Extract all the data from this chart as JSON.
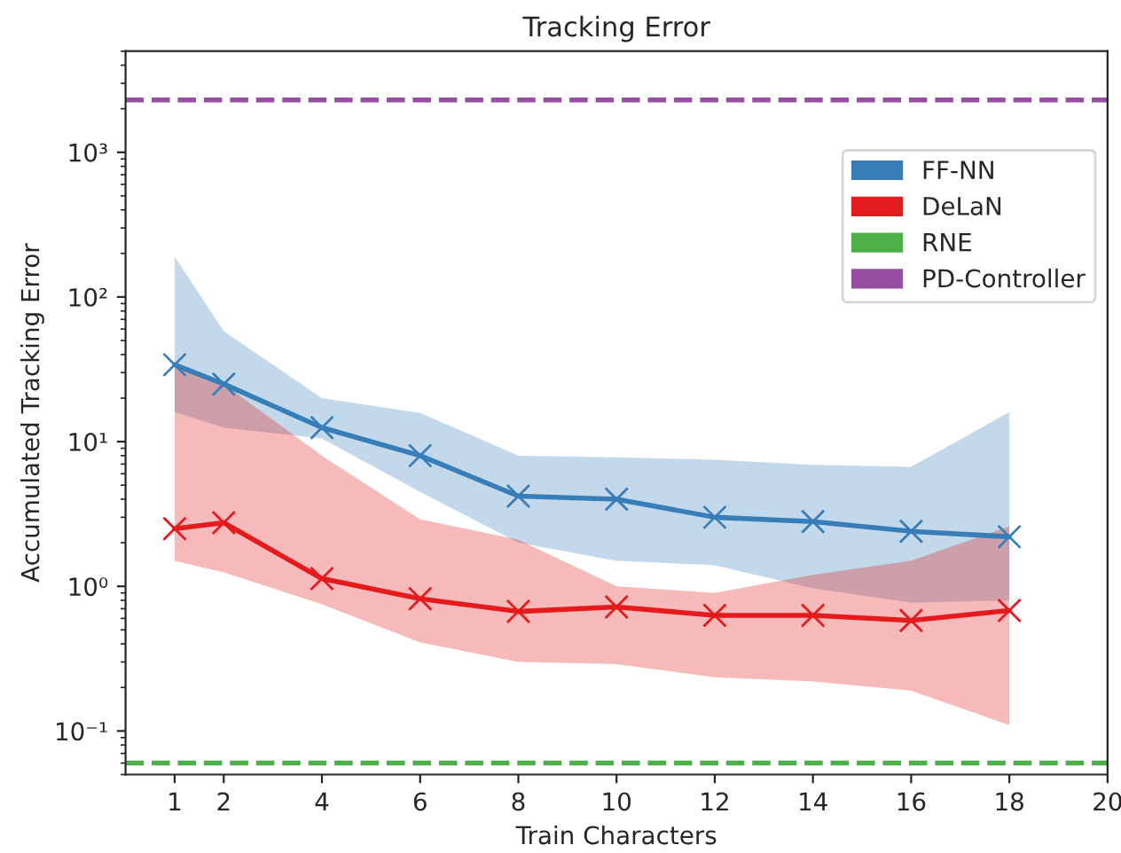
{
  "chart_data": {
    "type": "line",
    "title": "Tracking Error",
    "xlabel": "Train Characters",
    "ylabel": "Accumulated Tracking Error",
    "x": [
      1,
      2,
      4,
      6,
      8,
      10,
      12,
      14,
      16,
      18
    ],
    "series": [
      {
        "name": "FF-NN",
        "color": "#377eb8",
        "values": [
          34,
          25,
          12.5,
          8,
          4.2,
          4.0,
          3.0,
          2.8,
          2.4,
          2.2
        ],
        "lower": [
          16,
          12.5,
          10.5,
          4.5,
          2.0,
          1.5,
          1.4,
          0.97,
          0.77,
          0.8
        ],
        "upper": [
          190,
          58,
          20,
          15.8,
          8,
          7.8,
          7.5,
          6.9,
          6.7,
          16
        ]
      },
      {
        "name": "DeLaN",
        "color": "#e41a1c",
        "values": [
          2.5,
          2.75,
          1.13,
          0.82,
          0.67,
          0.72,
          0.63,
          0.63,
          0.58,
          0.68
        ],
        "lower": [
          1.5,
          1.25,
          0.75,
          0.41,
          0.3,
          0.29,
          0.235,
          0.22,
          0.19,
          0.11
        ],
        "upper": [
          33,
          25,
          8,
          2.9,
          2.1,
          1.0,
          0.9,
          1.2,
          1.5,
          2.6
        ]
      }
    ],
    "ref_lines": [
      {
        "axis": "y",
        "value": 0.06,
        "label": "RNE",
        "color": "#4daf4a",
        "line_style": "dashed"
      },
      {
        "axis": "y",
        "value": 2300,
        "label": "PD-Controller",
        "color": "#984ea3",
        "line_style": "dashed"
      }
    ],
    "marker": "cross",
    "line_style": "solid",
    "log": "y",
    "grid": false,
    "legend": "top right",
    "xlim": [
      0,
      20
    ],
    "xticks": [
      1,
      2,
      4,
      6,
      8,
      10,
      12,
      14,
      16,
      18,
      20
    ],
    "ylim": [
      0.05,
      5000
    ],
    "yticks": [
      {
        "value": 0.1,
        "label": "10⁻¹"
      },
      {
        "value": 1,
        "label": "10⁰"
      },
      {
        "value": 10,
        "label": "10¹"
      },
      {
        "value": 100,
        "label": "10²"
      },
      {
        "value": 1000,
        "label": "10³"
      }
    ]
  }
}
